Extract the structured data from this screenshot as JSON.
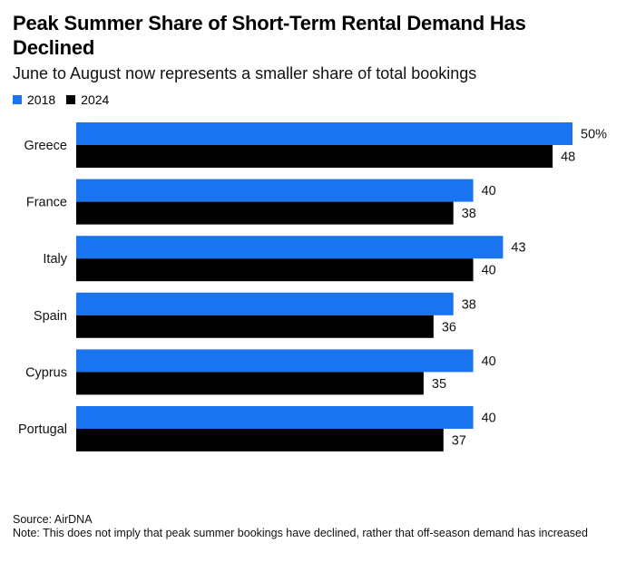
{
  "header": {
    "title": "Peak Summer Share of Short-Term Rental Demand Has Declined",
    "subtitle": "June to August now represents a smaller share of total bookings"
  },
  "legend": {
    "items": [
      {
        "label": "2018",
        "color": "#1a74f0"
      },
      {
        "label": "2024",
        "color": "#000000"
      }
    ]
  },
  "chart_data": {
    "type": "bar",
    "orientation": "horizontal",
    "title": "Peak Summer Share of Short-Term Rental Demand Has Declined",
    "subtitle": "June to August now represents a smaller share of total bookings",
    "categories": [
      "Greece",
      "France",
      "Italy",
      "Spain",
      "Cyprus",
      "Portugal"
    ],
    "series": [
      {
        "name": "2018",
        "color": "#1a74f0",
        "values": [
          50,
          40,
          43,
          38,
          40,
          40
        ]
      },
      {
        "name": "2024",
        "color": "#000000",
        "values": [
          48,
          38,
          40,
          36,
          35,
          37
        ]
      }
    ],
    "value_labels": [
      [
        "50%",
        "40",
        "43",
        "38",
        "40",
        "40"
      ],
      [
        "48",
        "38",
        "40",
        "36",
        "35",
        "37"
      ]
    ],
    "xlim": [
      0,
      50
    ],
    "grid": false,
    "legend_position": "top-left"
  },
  "footer": {
    "source": "Source: AirDNA",
    "note": "Note: This does not imply that peak summer bookings have declined, rather that off-season demand has increased"
  }
}
